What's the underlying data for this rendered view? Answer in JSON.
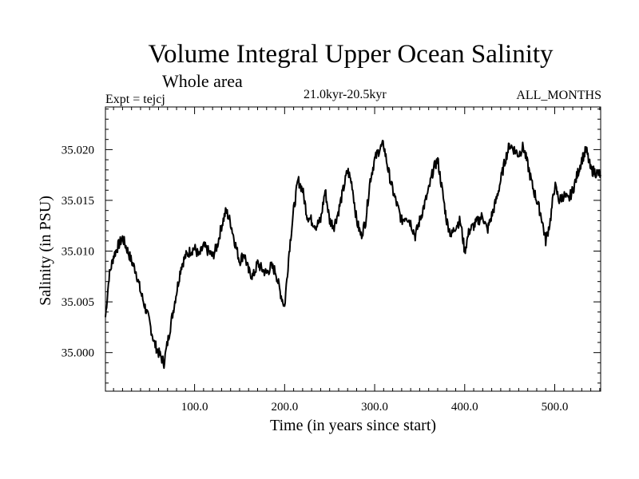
{
  "chart_data": {
    "type": "line",
    "title": "Volume Integral Upper Ocean Salinity",
    "subtitle": "Whole area",
    "experiment_label": "Expt = tejcj",
    "period_label": "21.0kyr-20.5kyr",
    "months_label": "ALL_MONTHS",
    "xlabel": "Time (in years since start)",
    "ylabel": "Salinity (in PSU)",
    "xlim": [
      1,
      551
    ],
    "ylim": [
      34.9962,
      35.0242
    ],
    "xticks": [
      100,
      200,
      300,
      400,
      500
    ],
    "xtick_labels": [
      "100.0",
      "200.0",
      "300.0",
      "400.0",
      "500.0"
    ],
    "yticks": [
      35.0,
      35.005,
      35.01,
      35.015,
      35.02
    ],
    "ytick_labels": [
      "35.000",
      "35.005",
      "35.010",
      "35.015",
      "35.020"
    ],
    "series": [
      {
        "name": "salinity",
        "x": [
          1,
          5,
          10,
          15,
          20,
          25,
          30,
          35,
          40,
          45,
          50,
          55,
          60,
          63,
          66,
          70,
          75,
          80,
          85,
          90,
          95,
          100,
          105,
          110,
          115,
          120,
          125,
          130,
          135,
          140,
          145,
          150,
          155,
          160,
          165,
          170,
          175,
          180,
          185,
          190,
          195,
          200,
          205,
          210,
          215,
          220,
          225,
          230,
          235,
          240,
          245,
          250,
          255,
          260,
          265,
          270,
          275,
          280,
          285,
          290,
          295,
          300,
          305,
          310,
          315,
          320,
          325,
          330,
          335,
          340,
          345,
          350,
          355,
          360,
          365,
          370,
          375,
          380,
          385,
          390,
          395,
          400,
          405,
          410,
          415,
          420,
          425,
          430,
          435,
          440,
          445,
          450,
          455,
          460,
          465,
          470,
          475,
          480,
          485,
          490,
          495,
          500,
          505,
          510,
          515,
          520,
          525,
          530,
          535,
          540,
          545,
          551
        ],
        "values": [
          35.0035,
          35.0075,
          35.0095,
          35.0105,
          35.0113,
          35.0102,
          35.009,
          35.008,
          35.006,
          35.0045,
          35.003,
          35.001,
          35.0,
          34.9995,
          34.999,
          35.001,
          35.0035,
          35.006,
          35.0085,
          35.0095,
          35.01,
          35.0103,
          35.0095,
          35.0105,
          35.01,
          35.0095,
          35.0105,
          35.0125,
          35.014,
          35.0128,
          35.0108,
          35.009,
          35.0098,
          35.008,
          35.0075,
          35.0088,
          35.0082,
          35.0078,
          35.0085,
          35.008,
          35.006,
          35.0045,
          35.01,
          35.014,
          35.017,
          35.016,
          35.0135,
          35.013,
          35.0125,
          35.013,
          35.016,
          35.013,
          35.0125,
          35.014,
          35.016,
          35.018,
          35.0165,
          35.013,
          35.0115,
          35.013,
          35.017,
          35.019,
          35.02,
          35.0205,
          35.018,
          35.016,
          35.0145,
          35.013,
          35.0135,
          35.0128,
          35.0115,
          35.013,
          35.0145,
          35.016,
          35.018,
          35.019,
          35.016,
          35.013,
          35.0115,
          35.0125,
          35.013,
          35.01,
          35.012,
          35.0125,
          35.013,
          35.0135,
          35.012,
          35.0135,
          35.015,
          35.017,
          35.019,
          35.0205,
          35.02,
          35.0195,
          35.0203,
          35.0185,
          35.0165,
          35.015,
          35.0135,
          35.011,
          35.013,
          35.0165,
          35.015,
          35.0155,
          35.015,
          35.016,
          35.0175,
          35.019,
          35.02,
          35.018,
          35.0178,
          35.0175
        ]
      }
    ]
  }
}
